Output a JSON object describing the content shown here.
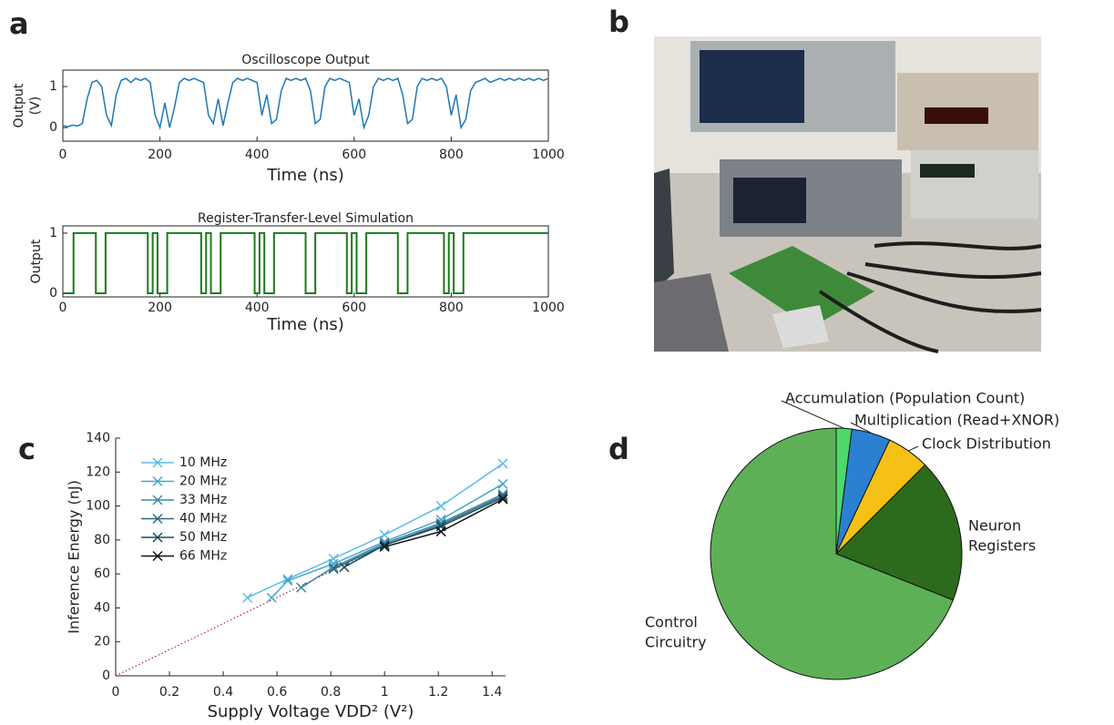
{
  "panel_labels": [
    "a",
    "b",
    "c",
    "d"
  ],
  "chart_data": [
    {
      "type": "line",
      "title": "Oscilloscope Output",
      "xlabel": "Time (ns)",
      "ylabel_lines": [
        "Output",
        "(V)"
      ],
      "frame": "box",
      "color": "#1f77b4",
      "xlim": [
        0,
        1000
      ],
      "xticks": [
        0,
        200,
        400,
        600,
        800,
        1000
      ],
      "ylim": [
        -0.33,
        1.4
      ],
      "yticks": [
        0,
        1
      ],
      "x": [
        0,
        10,
        20,
        30,
        40,
        50,
        60,
        70,
        80,
        90,
        100,
        110,
        120,
        130,
        140,
        150,
        160,
        170,
        180,
        190,
        200,
        210,
        220,
        230,
        240,
        250,
        260,
        270,
        280,
        290,
        300,
        310,
        320,
        330,
        340,
        350,
        360,
        370,
        380,
        390,
        400,
        410,
        420,
        430,
        440,
        450,
        460,
        470,
        480,
        490,
        500,
        510,
        520,
        530,
        540,
        550,
        560,
        570,
        580,
        590,
        600,
        610,
        620,
        630,
        640,
        650,
        660,
        670,
        680,
        690,
        700,
        710,
        720,
        730,
        740,
        750,
        760,
        770,
        780,
        790,
        800,
        810,
        820,
        830,
        840,
        850,
        860,
        870,
        880,
        890,
        900,
        910,
        920,
        930,
        940,
        950,
        960,
        970,
        980,
        990,
        1000
      ],
      "values": [
        0.05,
        0.02,
        0.06,
        0.04,
        0.1,
        0.7,
        1.1,
        1.15,
        1.0,
        0.3,
        0.05,
        0.8,
        1.15,
        1.2,
        1.1,
        1.2,
        1.15,
        1.2,
        1.1,
        0.3,
        0.0,
        0.6,
        0.0,
        0.5,
        1.1,
        1.2,
        1.15,
        1.2,
        1.15,
        1.1,
        0.3,
        0.1,
        0.7,
        0.05,
        0.6,
        1.1,
        1.2,
        1.15,
        1.2,
        1.15,
        1.1,
        0.3,
        0.8,
        0.1,
        0.2,
        0.9,
        1.2,
        1.15,
        1.2,
        1.15,
        1.2,
        0.9,
        0.1,
        0.2,
        1.0,
        1.2,
        1.15,
        1.2,
        1.15,
        1.1,
        0.3,
        0.7,
        0.0,
        0.3,
        1.0,
        1.2,
        1.15,
        1.2,
        1.15,
        1.2,
        0.8,
        0.1,
        0.2,
        1.0,
        1.2,
        1.15,
        1.2,
        1.15,
        1.2,
        1.0,
        0.3,
        0.8,
        0.0,
        0.2,
        0.9,
        1.1,
        1.15,
        1.2,
        1.1,
        1.15,
        1.2,
        1.15,
        1.2,
        1.15,
        1.2,
        1.15,
        1.2,
        1.15,
        1.2,
        1.15,
        1.2
      ]
    },
    {
      "type": "line",
      "step": "post",
      "title": "Register-Transfer-Level Simulation",
      "xlabel": "Time (ns)",
      "ylabel_lines": [
        "Output"
      ],
      "frame": "box",
      "color": "#1a7a1a",
      "xlim": [
        0,
        1000
      ],
      "xticks": [
        0,
        200,
        400,
        600,
        800,
        1000
      ],
      "ylim": [
        -0.06,
        1.12
      ],
      "yticks": [
        0,
        1
      ],
      "x": [
        0,
        22,
        68,
        88,
        175,
        185,
        195,
        215,
        285,
        295,
        305,
        325,
        395,
        405,
        415,
        435,
        500,
        520,
        585,
        595,
        605,
        625,
        690,
        710,
        785,
        795,
        805,
        825,
        1000
      ],
      "values": [
        0,
        1,
        0,
        1,
        0,
        1,
        0,
        1,
        0,
        1,
        0,
        1,
        0,
        1,
        0,
        1,
        0,
        1,
        0,
        1,
        0,
        1,
        0,
        1,
        0,
        1,
        0,
        1,
        1
      ]
    },
    {
      "type": "line",
      "marker": "x",
      "xlabel": "Supply Voltage VDD² (V²)",
      "ylabel": "Inference Energy (nJ)",
      "frame": "axes",
      "xlim": [
        0,
        1.45
      ],
      "xticks": [
        0,
        0.2,
        0.4,
        0.6,
        0.8,
        1,
        1.2,
        1.4
      ],
      "ylim": [
        0,
        140
      ],
      "yticks": [
        0,
        20,
        40,
        60,
        80,
        100,
        120,
        140
      ],
      "legend": "upper left",
      "series": [
        {
          "name": "10 MHz",
          "color": "#5bbde3",
          "x": [
            0.49,
            0.64,
            0.81,
            1.0,
            1.21,
            1.44
          ],
          "values": [
            46,
            57,
            69,
            83,
            100,
            125
          ]
        },
        {
          "name": "20 MHz",
          "color": "#46a6cc",
          "x": [
            0.58,
            0.64,
            0.81,
            1.0,
            1.21,
            1.44
          ],
          "values": [
            46,
            56,
            66,
            79,
            92,
            113
          ]
        },
        {
          "name": "33 MHz",
          "color": "#3a88a4",
          "x": [
            0.69,
            0.81,
            1.0,
            1.21,
            1.44
          ],
          "values": [
            52,
            64,
            78,
            90,
            107
          ]
        },
        {
          "name": "40 MHz",
          "color": "#2d6a80",
          "x": [
            0.81,
            1.0,
            1.21,
            1.44
          ],
          "values": [
            63,
            77,
            89,
            106
          ]
        },
        {
          "name": "50 MHz",
          "color": "#1e4a5c",
          "x": [
            0.85,
            1.0,
            1.21,
            1.44
          ],
          "values": [
            64,
            77,
            88,
            105
          ]
        },
        {
          "name": "66 MHz",
          "color": "#111111",
          "x": [
            1.0,
            1.21,
            1.44
          ],
          "values": [
            76,
            85,
            104
          ]
        }
      ],
      "reference_line": {
        "color": "#a0204a",
        "x": [
          0,
          1
        ],
        "values": [
          0,
          77
        ]
      }
    },
    {
      "type": "pie",
      "label_lines": [
        [
          "Accumulation (Population Count)"
        ],
        [
          "Multiplication (Read+XNOR)"
        ],
        [
          "Clock Distribution"
        ],
        [
          "Neuron",
          "Registers"
        ],
        [
          "Control",
          "Circuitry"
        ]
      ],
      "values": [
        2,
        5,
        5.5,
        18.5,
        69
      ],
      "colors": [
        "#4cd96a",
        "#2b80d2",
        "#f5c116",
        "#2c6a1c",
        "#5db055"
      ]
    }
  ]
}
